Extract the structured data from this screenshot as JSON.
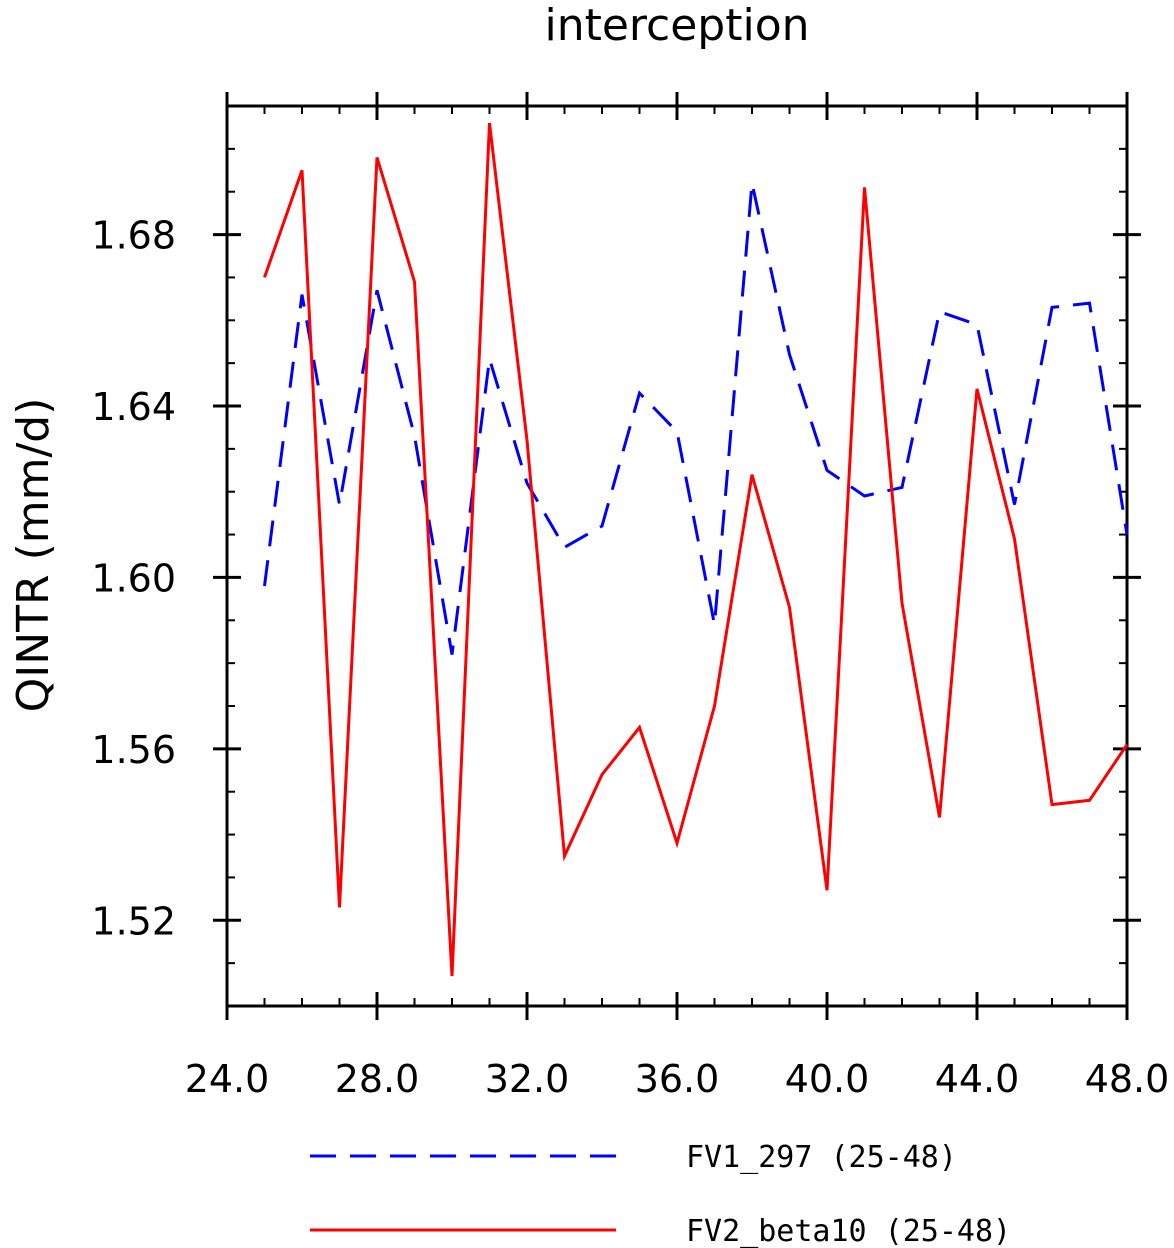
{
  "chart_data": {
    "type": "line",
    "title": "interception",
    "xlabel": "",
    "ylabel": "QINTR  (mm/d)",
    "xlim": [
      24,
      48
    ],
    "ylim": [
      1.5,
      1.71
    ],
    "x_ticks": [
      "24.0",
      "28.0",
      "32.0",
      "36.0",
      "40.0",
      "44.0",
      "48.0"
    ],
    "y_ticks": [
      "1.52",
      "1.56",
      "1.60",
      "1.64",
      "1.68"
    ],
    "grid": false,
    "legend_position": "bottom",
    "x": [
      25,
      26,
      27,
      28,
      29,
      30,
      31,
      32,
      33,
      34,
      35,
      36,
      37,
      38,
      39,
      40,
      41,
      42,
      43,
      44,
      45,
      46,
      47,
      48
    ],
    "series": [
      {
        "name": "FV1_297 (25-48)",
        "color": "#0000ff",
        "dash": "dashed",
        "values": [
          1.598,
          1.666,
          1.617,
          1.667,
          1.633,
          1.582,
          1.651,
          1.622,
          1.607,
          1.612,
          1.643,
          1.634,
          1.589,
          1.692,
          1.652,
          1.625,
          1.619,
          1.621,
          1.662,
          1.659,
          1.617,
          1.663,
          1.664,
          1.61
        ]
      },
      {
        "name": "FV2_beta10 (25-48)",
        "color": "#ff0000",
        "dash": "solid",
        "values": [
          1.67,
          1.695,
          1.523,
          1.698,
          1.669,
          1.507,
          1.706,
          1.632,
          1.535,
          1.554,
          1.565,
          1.538,
          1.57,
          1.624,
          1.593,
          1.527,
          1.691,
          1.594,
          1.544,
          1.644,
          1.609,
          1.547,
          1.548,
          1.561
        ]
      }
    ]
  }
}
